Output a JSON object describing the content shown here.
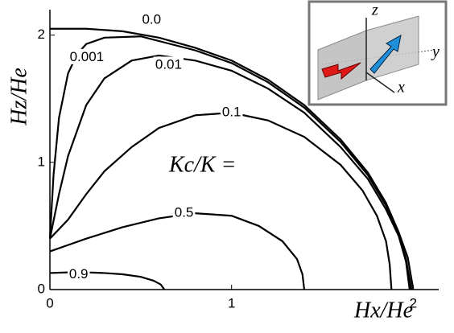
{
  "chart_data": {
    "type": "line",
    "x_label": "Hx/He",
    "y_label": "Hz/He",
    "annotation": "Kc/K =",
    "xlim": [
      0,
      2.14
    ],
    "ylim": [
      0,
      2.2
    ],
    "xticks": [
      0,
      1,
      2
    ],
    "yticks": [
      0,
      1,
      2
    ],
    "color": "#000000",
    "series": [
      {
        "name": "0.0",
        "x": [
          0,
          0.2,
          0.4,
          0.6,
          0.8,
          1.0,
          1.2,
          1.4,
          1.6,
          1.75,
          1.85,
          1.92,
          1.97,
          2.0
        ],
        "values": [
          2.05,
          2.05,
          2.03,
          1.98,
          1.9,
          1.8,
          1.65,
          1.45,
          1.18,
          0.92,
          0.68,
          0.45,
          0.25,
          0
        ]
      },
      {
        "name": "0.001",
        "x": [
          0,
          0.02,
          0.05,
          0.1,
          0.15,
          0.2,
          0.3,
          0.5,
          0.8,
          1.0,
          1.2,
          1.4,
          1.6,
          1.75,
          1.85,
          1.92,
          1.96,
          1.99
        ],
        "values": [
          0.4,
          0.9,
          1.35,
          1.7,
          1.85,
          1.93,
          1.98,
          1.99,
          1.88,
          1.78,
          1.63,
          1.43,
          1.16,
          0.9,
          0.66,
          0.44,
          0.24,
          0
        ]
      },
      {
        "name": "0.01",
        "x": [
          0,
          0.05,
          0.1,
          0.2,
          0.3,
          0.45,
          0.6,
          0.8,
          1.0,
          1.2,
          1.4,
          1.6,
          1.75,
          1.85,
          1.92,
          1.96,
          1.98
        ],
        "values": [
          0.4,
          0.75,
          1.05,
          1.45,
          1.66,
          1.8,
          1.84,
          1.8,
          1.72,
          1.58,
          1.39,
          1.12,
          0.87,
          0.63,
          0.42,
          0.22,
          0
        ]
      },
      {
        "name": "0.1",
        "x": [
          0,
          0.1,
          0.2,
          0.3,
          0.45,
          0.6,
          0.8,
          1.0,
          1.2,
          1.4,
          1.6,
          1.72,
          1.8,
          1.85,
          1.87,
          1.88
        ],
        "values": [
          0.4,
          0.55,
          0.75,
          0.93,
          1.12,
          1.27,
          1.37,
          1.39,
          1.33,
          1.2,
          0.98,
          0.78,
          0.58,
          0.38,
          0.2,
          0
        ]
      },
      {
        "name": "0.5",
        "x": [
          0,
          0.1,
          0.2,
          0.4,
          0.6,
          0.8,
          1.0,
          1.15,
          1.28,
          1.36,
          1.39,
          1.4
        ],
        "values": [
          0.3,
          0.35,
          0.4,
          0.49,
          0.56,
          0.6,
          0.58,
          0.5,
          0.38,
          0.24,
          0.12,
          0
        ]
      },
      {
        "name": "0.9",
        "x": [
          0,
          0.1,
          0.2,
          0.3,
          0.4,
          0.5,
          0.57,
          0.61,
          0.63
        ],
        "values": [
          0.13,
          0.135,
          0.135,
          0.13,
          0.12,
          0.1,
          0.07,
          0.04,
          0
        ]
      }
    ]
  },
  "inset": {
    "labels": [
      "z",
      "y",
      "x"
    ]
  }
}
